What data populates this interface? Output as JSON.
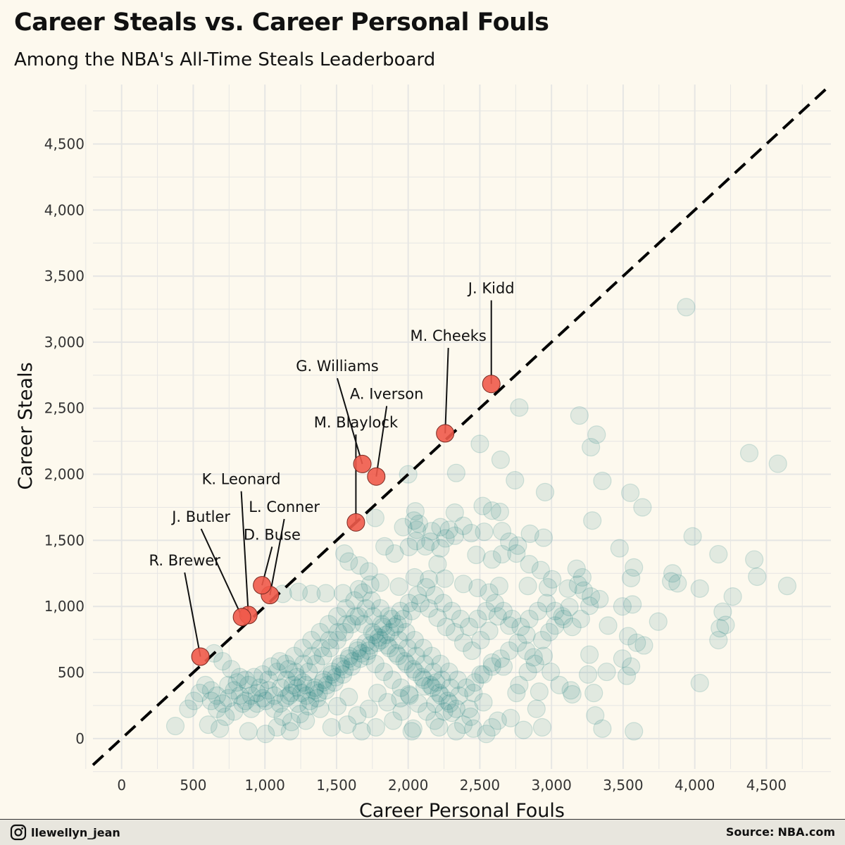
{
  "header": {
    "title": "Career Steals vs. Career Personal Fouls",
    "subtitle": "Among the NBA's All-Time Steals Leaderboard"
  },
  "footer": {
    "handle": "llewellyn_jean",
    "handle_icon": "instagram-icon",
    "source_label": "Source:",
    "source_value": "NBA.com"
  },
  "colors": {
    "background": "#fdf9ee",
    "grid": "#e6e6e4",
    "point": "#1a7f7f",
    "highlight": "#f05a4a",
    "reference_line": "#000000"
  },
  "chart_data": {
    "type": "scatter",
    "xlabel": "Career Personal Fouls",
    "ylabel": "Career Steals",
    "xlim": [
      -200,
      4950
    ],
    "ylim": [
      -230,
      4950
    ],
    "xticks": [
      0,
      500,
      1000,
      1500,
      2000,
      2500,
      3000,
      3500,
      4000,
      4500
    ],
    "yticks": [
      0,
      500,
      1000,
      1500,
      2000,
      2500,
      3000,
      3500,
      4000,
      4500
    ],
    "grid": true,
    "reference_line": "y = x",
    "highlighted": [
      {
        "label": "J. Kidd",
        "x": 2580,
        "y": 2684,
        "lx": 2580,
        "ly": 3370
      },
      {
        "label": "M. Cheeks",
        "x": 2258,
        "y": 2310,
        "lx": 2280,
        "ly": 3010
      },
      {
        "label": "G. Williams",
        "x": 1680,
        "y": 2078,
        "lx": 1505,
        "ly": 2780
      },
      {
        "label": "A. Iverson",
        "x": 1777,
        "y": 1983,
        "lx": 1850,
        "ly": 2570
      },
      {
        "label": "M. Blaylock",
        "x": 1635,
        "y": 1636,
        "lx": 1635,
        "ly": 2355
      },
      {
        "label": "K. Leonard",
        "x": 885,
        "y": 935,
        "lx": 835,
        "ly": 1925
      },
      {
        "label": "L. Conner",
        "x": 1035,
        "y": 1086,
        "lx": 1135,
        "ly": 1715
      },
      {
        "label": "J. Butler",
        "x": 840,
        "y": 920,
        "lx": 555,
        "ly": 1640
      },
      {
        "label": "D. Buse",
        "x": 980,
        "y": 1160,
        "lx": 1050,
        "ly": 1505
      },
      {
        "label": "R. Brewer",
        "x": 550,
        "y": 620,
        "lx": 440,
        "ly": 1310
      }
    ],
    "points": [
      [
        3940,
        3265
      ],
      [
        2775,
        2505
      ],
      [
        3195,
        2445
      ],
      [
        3315,
        2300
      ],
      [
        2500,
        2230
      ],
      [
        3275,
        2205
      ],
      [
        2645,
        2110
      ],
      [
        4380,
        2160
      ],
      [
        4580,
        2080
      ],
      [
        2335,
        2010
      ],
      [
        3355,
        1950
      ],
      [
        2745,
        1955
      ],
      [
        2955,
        1865
      ],
      [
        3550,
        1860
      ],
      [
        3635,
        1750
      ],
      [
        2520,
        1760
      ],
      [
        2585,
        1725
      ],
      [
        2640,
        1715
      ],
      [
        2050,
        1720
      ],
      [
        2325,
        1710
      ],
      [
        1770,
        1670
      ],
      [
        2040,
        1650
      ],
      [
        2075,
        1625
      ],
      [
        2225,
        1600
      ],
      [
        3285,
        1650
      ],
      [
        1965,
        1600
      ],
      [
        2060,
        1580
      ],
      [
        2165,
        1570
      ],
      [
        2285,
        1580
      ],
      [
        2385,
        1610
      ],
      [
        2440,
        1555
      ],
      [
        2530,
        1565
      ],
      [
        2655,
        1570
      ],
      [
        2850,
        1550
      ],
      [
        2260,
        1515
      ],
      [
        2325,
        1535
      ],
      [
        2055,
        1495
      ],
      [
        2155,
        1490
      ],
      [
        2705,
        1490
      ],
      [
        2765,
        1460
      ],
      [
        2945,
        1520
      ],
      [
        3985,
        1530
      ],
      [
        1835,
        1455
      ],
      [
        2005,
        1450
      ],
      [
        2120,
        1455
      ],
      [
        2225,
        1440
      ],
      [
        1905,
        1400
      ],
      [
        2475,
        1390
      ],
      [
        2655,
        1395
      ],
      [
        2755,
        1400
      ],
      [
        3475,
        1440
      ],
      [
        4165,
        1395
      ],
      [
        4415,
        1355
      ],
      [
        4435,
        1225
      ],
      [
        4645,
        1155
      ],
      [
        4035,
        1135
      ],
      [
        3845,
        1250
      ],
      [
        3880,
        1175
      ],
      [
        3835,
        1190
      ],
      [
        3575,
        1295
      ],
      [
        3555,
        1215
      ],
      [
        3175,
        1285
      ],
      [
        2925,
        1275
      ],
      [
        1555,
        1400
      ],
      [
        1585,
        1340
      ],
      [
        1660,
        1310
      ],
      [
        1725,
        1265
      ],
      [
        2205,
        1320
      ],
      [
        2585,
        1355
      ],
      [
        2845,
        1320
      ],
      [
        3215,
        1220
      ],
      [
        3005,
        1205
      ],
      [
        2975,
        1145
      ],
      [
        3115,
        1135
      ],
      [
        3185,
        1165
      ],
      [
        3225,
        1120
      ],
      [
        3275,
        1075
      ],
      [
        3335,
        1055
      ],
      [
        2835,
        1155
      ],
      [
        2635,
        1155
      ],
      [
        2565,
        1105
      ],
      [
        2485,
        1140
      ],
      [
        2385,
        1170
      ],
      [
        2255,
        1210
      ],
      [
        2145,
        1205
      ],
      [
        2045,
        1220
      ],
      [
        1935,
        1150
      ],
      [
        1805,
        1180
      ],
      [
        1735,
        1165
      ],
      [
        1655,
        1130
      ],
      [
        1545,
        1100
      ],
      [
        1425,
        1100
      ],
      [
        1325,
        1095
      ],
      [
        1235,
        1110
      ],
      [
        1125,
        1095
      ],
      [
        4265,
        1075
      ],
      [
        4195,
        960
      ],
      [
        4175,
        835
      ],
      [
        4215,
        860
      ],
      [
        4165,
        745
      ],
      [
        4035,
        420
      ],
      [
        3745,
        885
      ],
      [
        3565,
        1015
      ],
      [
        3495,
        1000
      ],
      [
        3395,
        855
      ],
      [
        3535,
        775
      ],
      [
        3595,
        725
      ],
      [
        3645,
        705
      ],
      [
        3555,
        545
      ],
      [
        3495,
        605
      ],
      [
        3385,
        505
      ],
      [
        3525,
        475
      ],
      [
        3575,
        55
      ],
      [
        3265,
        635
      ],
      [
        3255,
        485
      ],
      [
        3295,
        345
      ],
      [
        3305,
        175
      ],
      [
        3355,
        75
      ],
      [
        3135,
        365
      ],
      [
        3145,
        335
      ],
      [
        3055,
        405
      ],
      [
        2995,
        505
      ],
      [
        2945,
        625
      ],
      [
        2885,
        565
      ],
      [
        2915,
        355
      ],
      [
        2895,
        225
      ],
      [
        2935,
        85
      ],
      [
        2835,
        505
      ],
      [
        2775,
        405
      ],
      [
        2755,
        345
      ],
      [
        2715,
        155
      ],
      [
        2805,
        65
      ],
      [
        2665,
        545
      ],
      [
        2585,
        575
      ],
      [
        2505,
        485
      ],
      [
        2455,
        345
      ],
      [
        2525,
        275
      ],
      [
        2625,
        135
      ],
      [
        2435,
        165
      ],
      [
        2385,
        105
      ],
      [
        2305,
        195
      ],
      [
        2215,
        85
      ],
      [
        2185,
        135
      ],
      [
        2035,
        75
      ],
      [
        2025,
        55
      ],
      [
        1955,
        205
      ],
      [
        1895,
        135
      ],
      [
        1775,
        85
      ],
      [
        1675,
        55
      ],
      [
        1575,
        105
      ],
      [
        1465,
        85
      ],
      [
        1385,
        225
      ],
      [
        1285,
        135
      ],
      [
        1175,
        55
      ],
      [
        1085,
        85
      ],
      [
        1005,
        35
      ],
      [
        885,
        55
      ],
      [
        685,
        75
      ],
      [
        605,
        105
      ],
      [
        375,
        95
      ],
      [
        2425,
        225
      ],
      [
        2585,
        85
      ],
      [
        2335,
        55
      ],
      [
        2455,
        75
      ],
      [
        2545,
        35
      ],
      [
        2195,
        425
      ],
      [
        2115,
        395
      ],
      [
        2005,
        335
      ],
      [
        1945,
        305
      ],
      [
        1855,
        275
      ],
      [
        1785,
        345
      ],
      [
        1725,
        225
      ],
      [
        1645,
        175
      ],
      [
        1585,
        315
      ],
      [
        1505,
        245
      ],
      [
        2825,
        665
      ],
      [
        2875,
        615
      ],
      [
        2935,
        745
      ],
      [
        2985,
        805
      ],
      [
        3025,
        855
      ],
      [
        3075,
        925
      ],
      [
        3125,
        995
      ],
      [
        3205,
        905
      ],
      [
        3265,
        1005
      ],
      [
        2705,
        855
      ],
      [
        2625,
        925
      ],
      [
        2565,
        815
      ],
      [
        2505,
        745
      ],
      [
        2445,
        665
      ],
      [
        2385,
        725
      ],
      [
        2325,
        805
      ],
      [
        2265,
        845
      ],
      [
        2205,
        915
      ],
      [
        2145,
        985
      ],
      [
        2085,
        1025
      ],
      [
        2025,
        965
      ],
      [
        1965,
        905
      ],
      [
        1905,
        845
      ],
      [
        1845,
        785
      ],
      [
        1785,
        725
      ],
      [
        1725,
        665
      ],
      [
        1665,
        605
      ],
      [
        1605,
        545
      ],
      [
        1545,
        485
      ],
      [
        1485,
        425
      ],
      [
        1425,
        365
      ],
      [
        1365,
        305
      ],
      [
        1305,
        245
      ],
      [
        1245,
        185
      ],
      [
        1185,
        125
      ],
      [
        1125,
        165
      ],
      [
        1065,
        225
      ],
      [
        1005,
        285
      ],
      [
        945,
        345
      ],
      [
        885,
        405
      ],
      [
        825,
        465
      ],
      [
        765,
        525
      ],
      [
        705,
        585
      ],
      [
        645,
        645
      ],
      [
        585,
        405
      ],
      [
        545,
        345
      ],
      [
        505,
        285
      ],
      [
        465,
        225
      ],
      [
        625,
        285
      ],
      [
        665,
        225
      ],
      [
        725,
        165
      ],
      [
        785,
        205
      ],
      [
        845,
        265
      ],
      [
        905,
        325
      ],
      [
        965,
        385
      ],
      [
        1025,
        445
      ],
      [
        1085,
        505
      ],
      [
        1145,
        565
      ],
      [
        1205,
        625
      ],
      [
        1265,
        685
      ],
      [
        1325,
        745
      ],
      [
        1385,
        805
      ],
      [
        1445,
        865
      ],
      [
        1505,
        925
      ],
      [
        1565,
        985
      ],
      [
        1625,
        1045
      ],
      [
        1685,
        1105
      ],
      [
        1745,
        1045
      ],
      [
        1805,
        985
      ],
      [
        1865,
        925
      ],
      [
        1925,
        865
      ],
      [
        1985,
        805
      ],
      [
        2045,
        745
      ],
      [
        2105,
        685
      ],
      [
        2165,
        625
      ],
      [
        2225,
        565
      ],
      [
        2285,
        505
      ],
      [
        2345,
        445
      ],
      [
        2405,
        385
      ],
      [
        2465,
        425
      ],
      [
        2525,
        485
      ],
      [
        2585,
        545
      ],
      [
        2645,
        605
      ],
      [
        2705,
        665
      ],
      [
        2765,
        725
      ],
      [
        2825,
        785
      ],
      [
        1265,
        425
      ],
      [
        1225,
        385
      ],
      [
        1185,
        345
      ],
      [
        1145,
        305
      ],
      [
        1105,
        265
      ],
      [
        1065,
        325
      ],
      [
        1025,
        365
      ],
      [
        985,
        305
      ],
      [
        945,
        265
      ],
      [
        905,
        225
      ],
      [
        865,
        285
      ],
      [
        825,
        325
      ],
      [
        785,
        365
      ],
      [
        745,
        305
      ],
      [
        705,
        265
      ],
      [
        665,
        325
      ],
      [
        625,
        365
      ],
      [
        745,
        405
      ],
      [
        805,
        425
      ],
      [
        865,
        445
      ],
      [
        925,
        465
      ],
      [
        985,
        485
      ],
      [
        1045,
        545
      ],
      [
        1105,
        585
      ],
      [
        1165,
        525
      ],
      [
        1225,
        465
      ],
      [
        1285,
        405
      ],
      [
        1345,
        365
      ],
      [
        1405,
        425
      ],
      [
        1465,
        485
      ],
      [
        1525,
        545
      ],
      [
        1585,
        605
      ],
      [
        1645,
        665
      ],
      [
        1705,
        725
      ],
      [
        1765,
        785
      ],
      [
        1825,
        845
      ],
      [
        1885,
        905
      ],
      [
        1945,
        965
      ],
      [
        2005,
        1025
      ],
      [
        2065,
        1085
      ],
      [
        2125,
        1145
      ],
      [
        2185,
        1085
      ],
      [
        2245,
        1025
      ],
      [
        2305,
        965
      ],
      [
        2365,
        905
      ],
      [
        2425,
        845
      ],
      [
        2485,
        905
      ],
      [
        2545,
        965
      ],
      [
        2605,
        1025
      ],
      [
        2665,
        965
      ],
      [
        2725,
        905
      ],
      [
        2785,
        845
      ],
      [
        2845,
        905
      ],
      [
        2905,
        965
      ],
      [
        2965,
        1025
      ],
      [
        3025,
        965
      ],
      [
        3085,
        905
      ],
      [
        3145,
        845
      ],
      [
        1305,
        505
      ],
      [
        1355,
        565
      ],
      [
        1405,
        625
      ],
      [
        1455,
        685
      ],
      [
        1505,
        745
      ],
      [
        1555,
        805
      ],
      [
        1605,
        865
      ],
      [
        1655,
        925
      ],
      [
        1705,
        985
      ],
      [
        1755,
        925
      ],
      [
        1815,
        865
      ],
      [
        1875,
        805
      ],
      [
        1935,
        745
      ],
      [
        1995,
        685
      ],
      [
        2055,
        625
      ],
      [
        2115,
        565
      ],
      [
        2175,
        505
      ],
      [
        2235,
        445
      ],
      [
        2295,
        385
      ],
      [
        2355,
        325
      ],
      [
        1195,
        405
      ],
      [
        1255,
        345
      ],
      [
        1315,
        285
      ],
      [
        1375,
        345
      ],
      [
        1435,
        405
      ],
      [
        1495,
        465
      ],
      [
        1555,
        525
      ],
      [
        1615,
        585
      ],
      [
        1675,
        645
      ],
      [
        1735,
        705
      ],
      [
        1795,
        765
      ],
      [
        1855,
        705
      ],
      [
        1915,
        645
      ],
      [
        1975,
        585
      ],
      [
        2035,
        525
      ],
      [
        2095,
        465
      ],
      [
        2155,
        405
      ],
      [
        2215,
        345
      ],
      [
        2275,
        285
      ],
      [
        2335,
        225
      ],
      [
        1150,
        445
      ],
      [
        1210,
        505
      ],
      [
        1270,
        565
      ],
      [
        1330,
        625
      ],
      [
        1390,
        685
      ],
      [
        1450,
        745
      ],
      [
        1510,
        805
      ],
      [
        1570,
        865
      ],
      [
        1630,
        925
      ],
      [
        1690,
        865
      ],
      [
        1750,
        805
      ],
      [
        1810,
        745
      ],
      [
        1870,
        685
      ],
      [
        1930,
        625
      ],
      [
        1990,
        565
      ],
      [
        2050,
        505
      ],
      [
        2110,
        445
      ],
      [
        2170,
        385
      ],
      [
        2230,
        325
      ],
      [
        2290,
        265
      ],
      [
        1110,
        385
      ],
      [
        1170,
        325
      ],
      [
        1230,
        265
      ],
      [
        1290,
        325
      ],
      [
        1350,
        385
      ],
      [
        1410,
        445
      ],
      [
        1470,
        505
      ],
      [
        1530,
        565
      ],
      [
        1590,
        625
      ],
      [
        1650,
        685
      ],
      [
        1710,
        625
      ],
      [
        1770,
        565
      ],
      [
        1830,
        505
      ],
      [
        1890,
        445
      ],
      [
        1950,
        385
      ],
      [
        2010,
        325
      ],
      [
        2070,
        265
      ],
      [
        2130,
        205
      ],
      [
        2190,
        265
      ],
      [
        2250,
        205
      ],
      [
        2000,
        2000
      ]
    ]
  }
}
